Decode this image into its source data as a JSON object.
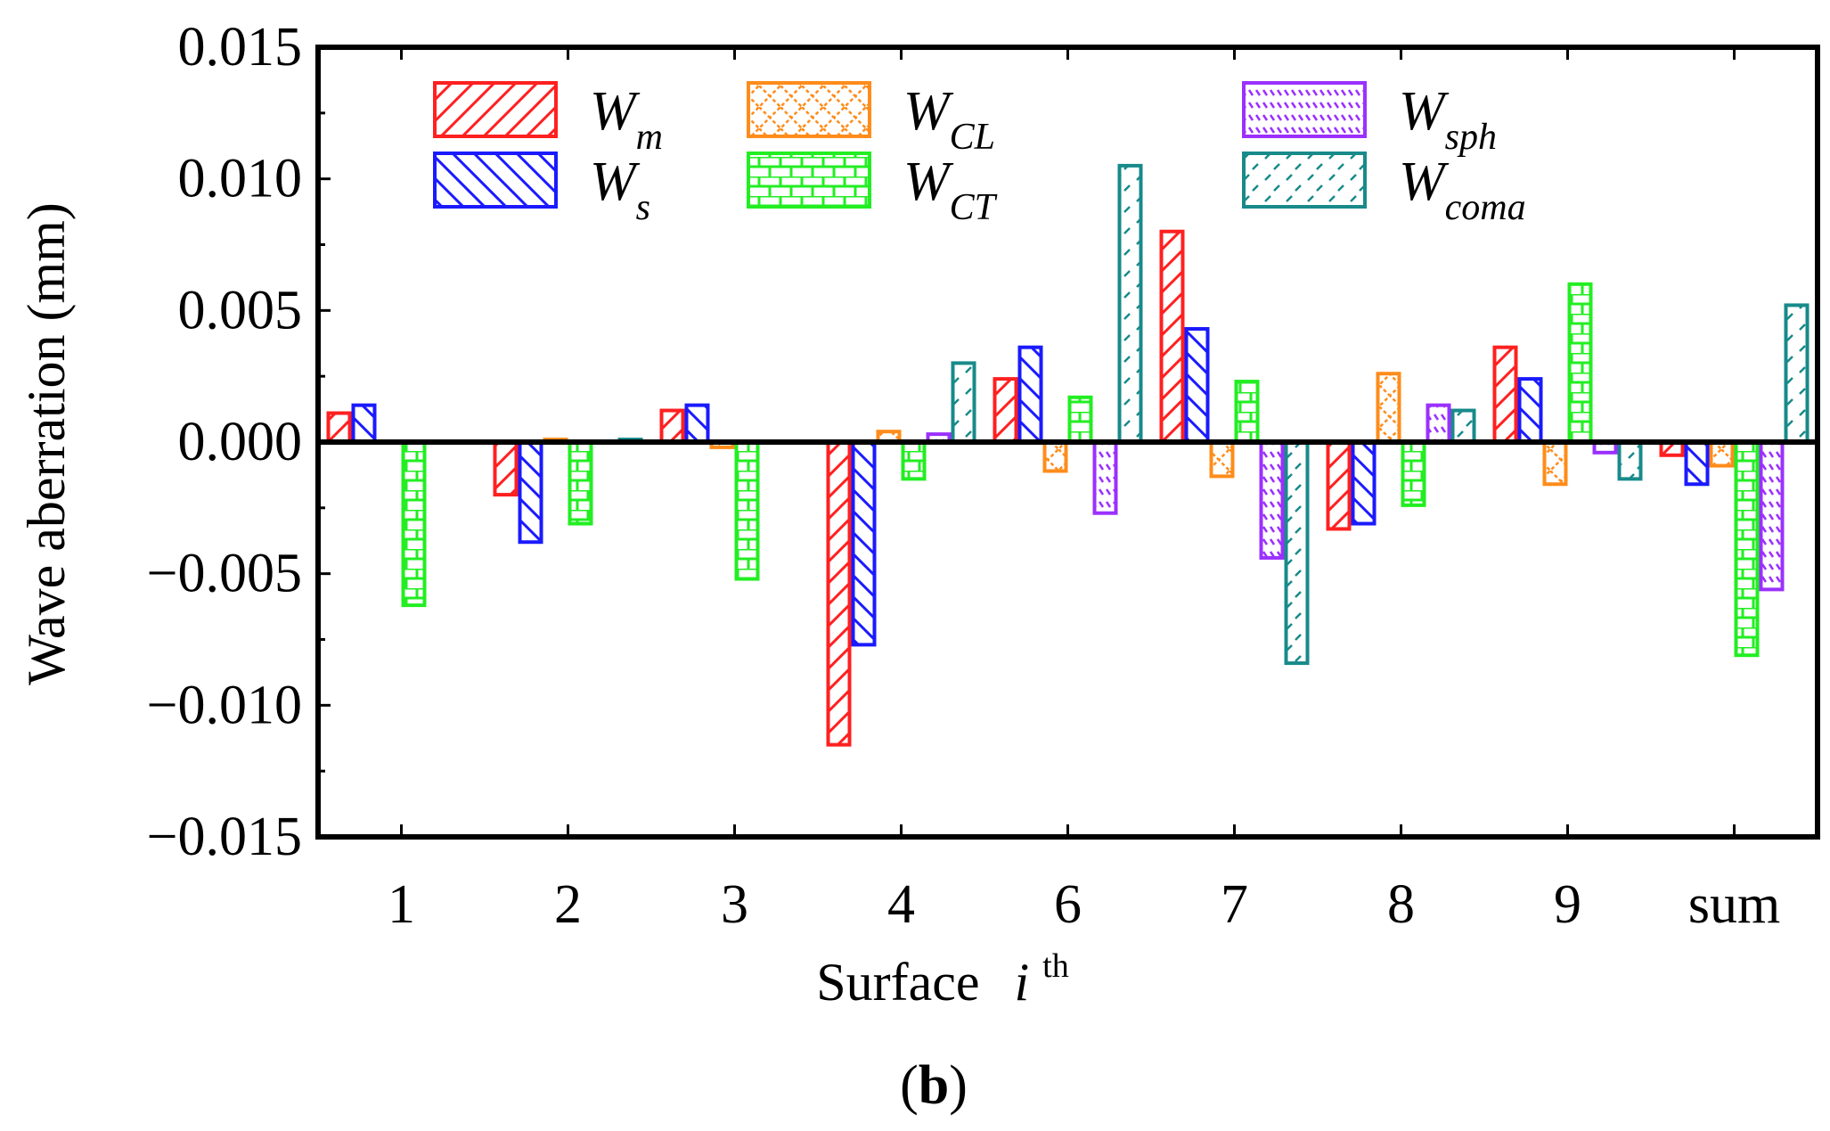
{
  "chart_data": {
    "type": "bar",
    "title": "",
    "panel_label": {
      "open": "(",
      "letter": "b",
      "close": ")"
    },
    "xlabel": {
      "text": "Surface",
      "italic": "i",
      "sup": "th"
    },
    "ylabel": "Wave aberration (mm)",
    "ylim": [
      -0.015,
      0.015
    ],
    "yticks": [
      {
        "value": 0.015,
        "label": "0.015"
      },
      {
        "value": 0.01,
        "label": "0.010"
      },
      {
        "value": 0.005,
        "label": "0.005"
      },
      {
        "value": 0,
        "label": "0.000"
      },
      {
        "value": -0.005,
        "label": "−0.005"
      },
      {
        "value": -0.01,
        "label": "−0.010"
      },
      {
        "value": -0.015,
        "label": "−0.015"
      }
    ],
    "categories": [
      "1",
      "2",
      "3",
      "4",
      "6",
      "7",
      "8",
      "9",
      "sum"
    ],
    "series": [
      {
        "key": "Wm",
        "name": "W",
        "sub": "m",
        "color": "#ff2020",
        "pattern": "hatch-fwd",
        "values": [
          0.0011,
          -0.002,
          0.0012,
          -0.0115,
          0.0024,
          0.008,
          -0.0033,
          0.0036,
          -0.0005
        ]
      },
      {
        "key": "Ws",
        "name": "W",
        "sub": "s",
        "color": "#1a1aff",
        "pattern": "hatch-back",
        "values": [
          0.0014,
          -0.0038,
          0.0014,
          -0.0077,
          0.0036,
          0.0043,
          -0.0031,
          0.0024,
          -0.0016
        ]
      },
      {
        "key": "WCL",
        "name": "W",
        "sub": "CL",
        "color": "#ff8c1a",
        "pattern": "diamond",
        "values": [
          0.0,
          0.0001,
          -0.0002,
          0.0004,
          -0.0011,
          -0.0013,
          0.0026,
          -0.0016,
          -0.0009
        ]
      },
      {
        "key": "WCT",
        "name": "W",
        "sub": "CT",
        "color": "#22ee22",
        "pattern": "brick",
        "values": [
          -0.0062,
          -0.0031,
          -0.0052,
          -0.0014,
          0.0017,
          0.0023,
          -0.0024,
          0.006,
          -0.0081
        ]
      },
      {
        "key": "Wsph",
        "name": "W",
        "sub": "sph",
        "color": "#9b30ff",
        "pattern": "dash-back",
        "values": [
          0.0,
          0.0,
          0.0,
          0.0003,
          -0.0027,
          -0.0044,
          0.0014,
          -0.0004,
          -0.0056
        ]
      },
      {
        "key": "Wcoma",
        "name": "W",
        "sub": "coma",
        "color": "#188a8a",
        "pattern": "dash-fwd",
        "values": [
          0.0,
          0.0001,
          0.0,
          0.003,
          0.0105,
          -0.0084,
          0.0012,
          -0.0014,
          0.0052
        ]
      }
    ],
    "legend_position": "top",
    "grid": false
  }
}
